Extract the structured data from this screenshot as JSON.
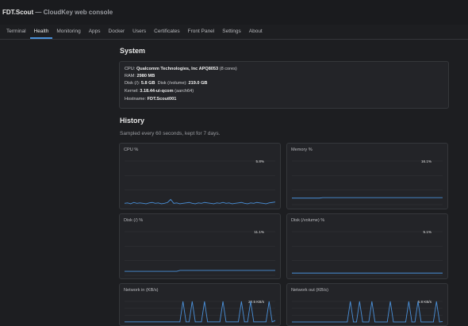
{
  "header": {
    "title": "FDT.Scout",
    "subtitle": "— CloudKey web console"
  },
  "tabs": [
    "Terminal",
    "Health",
    "Monitoring",
    "Apps",
    "Docker",
    "Users",
    "Certificates",
    "Front Panel",
    "Settings",
    "About"
  ],
  "system": {
    "title": "System",
    "cpu": {
      "label": "CPU:",
      "value": "Qualcomm Technologies, Inc APQ8053",
      "note": "(8 cores)"
    },
    "ram": {
      "label": "RAM:",
      "value": "2980 MB"
    },
    "disk_root": {
      "label": "Disk (/):",
      "value": "5.8 GB"
    },
    "disk_volume": {
      "label": "Disk (/volume):",
      "value": "219.0 GB"
    },
    "kernel": {
      "label": "Kernel:",
      "value": "3.18.44-ui-qcom",
      "note": "(aarch64)"
    },
    "hostname": {
      "label": "Hostname:",
      "value": "FDT.Scout001"
    }
  },
  "history": {
    "title": "History",
    "subtitle": "Sampled every 60 seconds, kept for 7 days.",
    "charts": [
      {
        "title": "CPU %",
        "current": "5.8%",
        "ylim": [
          0,
          100
        ],
        "color": "#4a90d9",
        "values": [
          3,
          4,
          2,
          5,
          3,
          4,
          3,
          2,
          4,
          5,
          3,
          4,
          2,
          3,
          5,
          12,
          3,
          4,
          2,
          3,
          4,
          5,
          3,
          2,
          4,
          3,
          5,
          4,
          3,
          2,
          4,
          3,
          5,
          3,
          4,
          2,
          3,
          4,
          5,
          3,
          2,
          4,
          3,
          5,
          4,
          3,
          2,
          4,
          5,
          6
        ]
      },
      {
        "title": "Memory %",
        "current": "16.1%",
        "ylim": [
          0,
          100
        ],
        "color": "#4a90d9",
        "values": [
          15,
          15,
          15,
          15,
          15,
          15,
          15,
          15,
          15,
          15,
          16,
          16,
          16,
          16,
          16,
          16,
          16,
          16,
          16,
          16,
          16,
          16,
          16,
          16,
          16,
          16,
          16,
          16,
          16,
          16,
          16,
          16,
          16,
          16,
          16,
          16,
          16,
          16,
          16,
          16,
          16,
          16,
          16,
          16,
          16,
          16,
          16,
          16,
          16,
          16
        ]
      },
      {
        "title": "Disk (/) %",
        "current": "11.1%",
        "ylim": [
          0,
          100
        ],
        "color": "#4a90d9",
        "values": [
          9,
          9,
          9,
          9,
          9,
          9,
          9,
          9,
          9,
          9,
          9,
          9,
          9,
          9,
          9,
          9,
          9,
          9,
          11,
          11,
          11,
          11,
          11,
          11,
          11,
          11,
          11,
          11,
          11,
          11,
          11,
          11,
          11,
          11,
          11,
          11,
          11,
          11,
          11,
          11,
          11,
          11,
          11,
          11,
          11,
          11,
          11,
          11,
          11,
          11
        ]
      },
      {
        "title": "Disk (/volume) %",
        "current": "5.1%",
        "ylim": [
          0,
          100
        ],
        "color": "#4a90d9",
        "values": [
          5,
          5,
          5,
          5,
          5,
          5,
          5,
          5,
          5,
          5,
          5,
          5,
          5,
          5,
          5,
          5,
          5,
          5,
          5,
          5,
          5,
          5,
          5,
          5,
          5,
          5,
          5,
          5,
          5,
          5,
          5,
          5,
          5,
          5,
          5,
          5,
          5,
          5,
          5,
          5,
          5,
          5,
          5,
          5,
          5,
          5,
          5,
          5,
          5,
          5
        ]
      },
      {
        "title": "Network in (KB/s)",
        "current": "22.5 KB/s",
        "ylim": [
          0,
          300
        ],
        "color": "#4a90d9",
        "values": [
          2,
          2,
          2,
          2,
          2,
          2,
          2,
          2,
          2,
          2,
          2,
          2,
          2,
          2,
          2,
          2,
          2,
          2,
          2,
          300,
          2,
          2,
          300,
          2,
          2,
          2,
          300,
          2,
          2,
          2,
          2,
          2,
          300,
          2,
          2,
          2,
          2,
          2,
          300,
          2,
          2,
          300,
          2,
          2,
          2,
          2,
          2,
          300,
          2,
          22
        ]
      },
      {
        "title": "Network out (KB/s)",
        "current": "5.8 KB/s",
        "ylim": [
          0,
          300
        ],
        "color": "#4a90d9",
        "values": [
          1,
          1,
          1,
          1,
          1,
          1,
          1,
          1,
          1,
          1,
          1,
          1,
          1,
          1,
          1,
          1,
          1,
          1,
          1,
          300,
          1,
          1,
          300,
          1,
          1,
          1,
          300,
          1,
          1,
          1,
          1,
          1,
          300,
          1,
          1,
          1,
          1,
          1,
          300,
          1,
          1,
          300,
          1,
          1,
          1,
          1,
          1,
          300,
          1,
          6
        ]
      }
    ]
  }
}
